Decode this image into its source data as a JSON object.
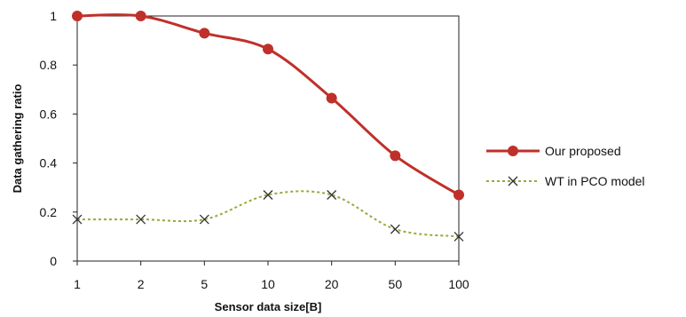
{
  "chart_data": {
    "type": "line",
    "categories": [
      "1",
      "2",
      "5",
      "10",
      "20",
      "50",
      "100"
    ],
    "series": [
      {
        "name": "Our proposed",
        "values": [
          1.0,
          1.0,
          0.93,
          0.865,
          0.665,
          0.43,
          0.27
        ],
        "color": "#c0302a",
        "marker": "circle",
        "style": "solid"
      },
      {
        "name": "WT in PCO model",
        "values": [
          0.17,
          0.17,
          0.17,
          0.27,
          0.27,
          0.13,
          0.1
        ],
        "color": "#9aa83a",
        "marker": "x",
        "style": "dotted"
      }
    ],
    "xlabel": "Sensor data size[B]",
    "ylabel": "Data gathering ratio",
    "ylim": [
      0,
      1
    ],
    "yticks": [
      "0",
      "0.2",
      "0.4",
      "0.6",
      "0.8",
      "1"
    ],
    "grid": false,
    "legend": "right"
  }
}
